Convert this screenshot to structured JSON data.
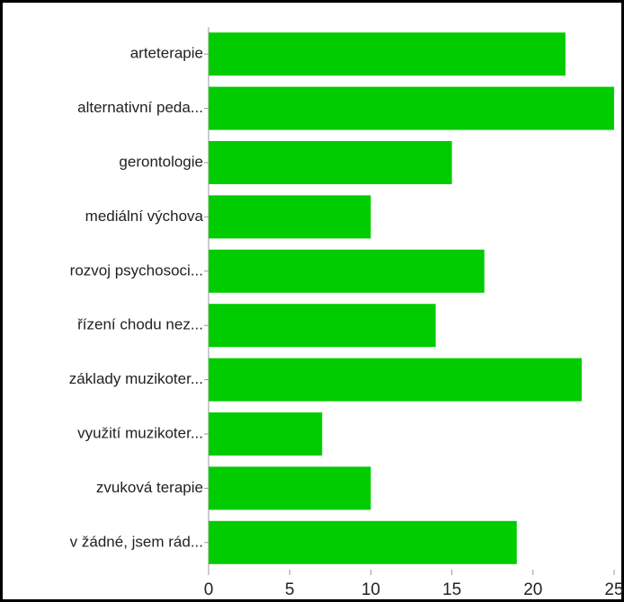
{
  "chart_data": {
    "type": "bar",
    "orientation": "horizontal",
    "categories": [
      "arteterapie",
      "alternativní peda...",
      "gerontologie",
      "mediální výchova",
      "rozvoj psychosoci...",
      "řízení chodu  nez...",
      "základy muzikoter...",
      "využití muzikoter...",
      "zvuková terapie",
      "v žádné, jsem rád..."
    ],
    "values": [
      22,
      25,
      15,
      10,
      17,
      14,
      23,
      7,
      10,
      19
    ],
    "color": "#00cc00",
    "xlim": [
      0,
      25
    ],
    "xticks": [
      0,
      5,
      10,
      15,
      20,
      25
    ]
  }
}
